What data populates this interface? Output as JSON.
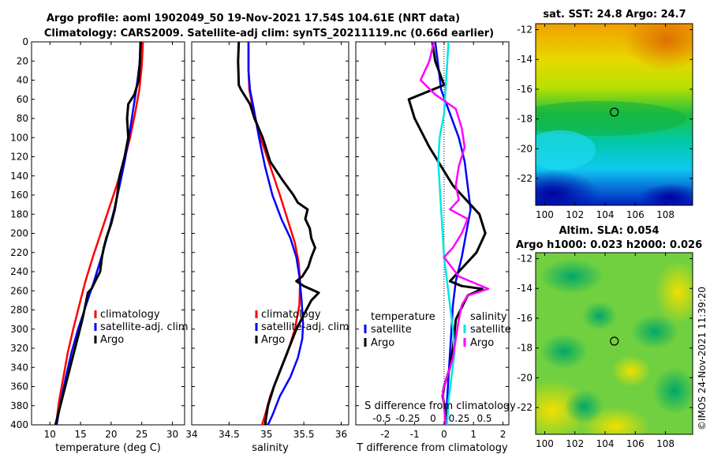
{
  "figure": {
    "title_line1": "Argo profile: aoml 1902049_50 19-Nov-2021 17.54S 104.61E (NRT data)",
    "title_line2": "Climatology: CARS2009. Satellite-adj clim: synTS_20211119.nc (0.66d earlier)",
    "credit": "©IMOS 24-Nov-2021 11:39:20"
  },
  "colors": {
    "climatology": "#ff0000",
    "satellite": "#0000ff",
    "argo": "#000000",
    "sat_salinity": "#00e5e5",
    "argo_salinity": "#ff00ff"
  },
  "chart_data": [
    {
      "type": "line",
      "title": "",
      "xlabel": "temperature (deg C)",
      "ylabel": "",
      "xlim": [
        7,
        32
      ],
      "ylim": [
        400,
        0
      ],
      "xticks": [
        "10",
        "15",
        "20",
        "25",
        "30"
      ],
      "xtick_values": [
        10,
        15,
        20,
        25,
        30
      ],
      "yticks": [
        "0",
        "20",
        "40",
        "60",
        "80",
        "100",
        "120",
        "140",
        "160",
        "180",
        "200",
        "220",
        "240",
        "260",
        "280",
        "300",
        "320",
        "340",
        "360",
        "380",
        "400"
      ],
      "legend": [
        "climatology",
        "satellite-adj. clim",
        "Argo"
      ],
      "series": [
        {
          "name": "climatology",
          "color": "#ff0000",
          "x": [
            25.2,
            25.0,
            24.6,
            23.9,
            23.1,
            22.1,
            20.9,
            19.6,
            18.3,
            17.0,
            15.8,
            14.8,
            13.8,
            12.9,
            12.2,
            11.5,
            11.0
          ],
          "y": [
            0,
            25,
            50,
            75,
            100,
            125,
            150,
            175,
            200,
            225,
            250,
            275,
            300,
            325,
            350,
            375,
            400
          ]
        },
        {
          "name": "satellite-adj. clim",
          "color": "#0000ff",
          "x": [
            24.9,
            24.6,
            24.1,
            23.5,
            22.9,
            22.2,
            21.4,
            20.5,
            19.5,
            18.4,
            17.2,
            15.9,
            14.6,
            13.5,
            12.6,
            11.8,
            11.1
          ],
          "y": [
            0,
            25,
            50,
            75,
            100,
            125,
            150,
            175,
            200,
            225,
            250,
            275,
            300,
            325,
            350,
            375,
            400
          ]
        },
        {
          "name": "Argo",
          "color": "#000000",
          "x": [
            24.8,
            24.7,
            24.5,
            23.8,
            22.8,
            22.6,
            22.8,
            22.2,
            21.4,
            21.0,
            20.6,
            20.0,
            19.2,
            18.8,
            18.5,
            18.2,
            17.4,
            16.8,
            16.2,
            15.8,
            15.3,
            14.7,
            14.1,
            13.5,
            12.9,
            12.3,
            11.7,
            11.3,
            10.9
          ],
          "y": [
            0,
            20,
            40,
            55,
            65,
            80,
            100,
            120,
            140,
            160,
            175,
            190,
            205,
            215,
            225,
            240,
            250,
            258,
            262,
            275,
            290,
            305,
            320,
            335,
            350,
            365,
            380,
            390,
            400
          ]
        }
      ]
    },
    {
      "type": "line",
      "title": "",
      "xlabel": "salinity",
      "ylabel": "",
      "xlim": [
        34,
        36.1
      ],
      "ylim": [
        400,
        0
      ],
      "xticks": [
        "34",
        "34.5",
        "35",
        "35.5",
        "36"
      ],
      "xtick_values": [
        34,
        34.5,
        35,
        35.5,
        36
      ],
      "legend": [
        "climatology",
        "satellite-adj. clim",
        "Argo"
      ],
      "series": [
        {
          "name": "climatology",
          "color": "#ff0000",
          "x": [
            34.76,
            34.76,
            34.77,
            34.82,
            34.92,
            35.05,
            35.18,
            35.3,
            35.38,
            35.43,
            35.45,
            35.44,
            35.38,
            35.28,
            35.15,
            35.05,
            34.98,
            34.94
          ],
          "y": [
            0,
            30,
            50,
            70,
            100,
            130,
            160,
            190,
            210,
            230,
            250,
            275,
            300,
            325,
            350,
            370,
            390,
            400
          ]
        },
        {
          "name": "satellite-adj. clim",
          "color": "#0000ff",
          "x": [
            34.76,
            34.76,
            34.78,
            34.83,
            34.9,
            34.98,
            35.08,
            35.2,
            35.32,
            35.4,
            35.44,
            35.47,
            35.49,
            35.48,
            35.42,
            35.32,
            35.18,
            35.08,
            35.02
          ],
          "y": [
            0,
            30,
            50,
            70,
            100,
            130,
            160,
            185,
            205,
            225,
            245,
            270,
            295,
            310,
            330,
            350,
            370,
            390,
            400
          ]
        },
        {
          "name": "Argo",
          "color": "#000000",
          "x": [
            34.63,
            34.62,
            34.63,
            34.66,
            34.78,
            34.84,
            34.95,
            35.05,
            35.22,
            35.36,
            35.42,
            35.55,
            35.52,
            35.58,
            35.6,
            35.65,
            35.6,
            35.56,
            35.48,
            35.4,
            35.5,
            35.7,
            35.6,
            35.5,
            35.4,
            35.3,
            35.2,
            35.1,
            35.02,
            34.98
          ],
          "y": [
            0,
            20,
            45,
            50,
            65,
            80,
            100,
            125,
            145,
            160,
            168,
            175,
            185,
            195,
            205,
            215,
            225,
            235,
            245,
            250,
            255,
            262,
            270,
            285,
            300,
            320,
            340,
            360,
            380,
            400
          ]
        }
      ]
    },
    {
      "type": "line",
      "title": "",
      "xlabel": "T difference from climatology",
      "xlabel_top": "S difference from climatology",
      "ylabel": "",
      "xlim": [
        -3,
        2.2
      ],
      "ylim": [
        400,
        0
      ],
      "xticks": [
        "-2",
        "-1",
        "0",
        "1",
        "2"
      ],
      "xtick_values": [
        -2,
        -1,
        0,
        1,
        2
      ],
      "xticks_top": [
        "-0.5",
        "-0.25",
        "0",
        "0.25",
        "0.5"
      ],
      "legend_temperature_title": "temperature",
      "legend_salinity_title": "salinity",
      "legend": [
        "satellite",
        "Argo",
        "satellite",
        "Argo"
      ],
      "series": [
        {
          "name": "satellite (temperature)",
          "color": "#0000ff",
          "x": [
            -0.3,
            -0.2,
            -0.1,
            0.2,
            0.5,
            0.7,
            0.8,
            0.9,
            0.75,
            0.6,
            0.4,
            0.3,
            0.25,
            0.2,
            0.15,
            0.1,
            0.08
          ],
          "y": [
            0,
            25,
            50,
            75,
            100,
            125,
            150,
            175,
            200,
            225,
            250,
            275,
            300,
            325,
            350,
            375,
            400
          ]
        },
        {
          "name": "Argo (temperature)",
          "color": "#000000",
          "x": [
            -0.4,
            -0.3,
            0.0,
            -1.2,
            -1.0,
            -0.5,
            0.3,
            1.2,
            1.4,
            1.1,
            0.5,
            0.2,
            0.6,
            1.3,
            0.8,
            0.4,
            0.3,
            0.2,
            0.0,
            -0.05,
            0.05,
            0.1
          ],
          "y": [
            0,
            20,
            45,
            60,
            80,
            110,
            150,
            180,
            200,
            220,
            240,
            250,
            255,
            258,
            265,
            290,
            320,
            340,
            360,
            370,
            385,
            400
          ]
        },
        {
          "name": "satellite (salinity)",
          "color": "#00e5e5",
          "x": [
            0.15,
            0.1,
            0.05,
            0.0,
            -0.15,
            -0.2,
            -0.15,
            -0.1,
            -0.05,
            0.0,
            0.1,
            0.2,
            0.3,
            0.35,
            0.25,
            0.15,
            0.1
          ],
          "y": [
            0,
            25,
            50,
            75,
            100,
            125,
            150,
            175,
            200,
            225,
            250,
            275,
            300,
            325,
            350,
            375,
            400
          ]
        },
        {
          "name": "Argo (salinity)",
          "color": "#ff00ff",
          "x": [
            -0.35,
            -0.5,
            -0.8,
            -0.3,
            0.4,
            0.6,
            0.7,
            0.5,
            0.4,
            0.5,
            0.2,
            0.8,
            0.6,
            0.3,
            0.0,
            0.5,
            1.5,
            0.8,
            0.6,
            0.5,
            0.4,
            0.3,
            0.1,
            -0.05,
            0.0,
            0.05
          ],
          "y": [
            0,
            20,
            40,
            55,
            70,
            90,
            110,
            130,
            150,
            165,
            175,
            185,
            200,
            215,
            225,
            245,
            258,
            265,
            275,
            290,
            310,
            330,
            350,
            365,
            380,
            400
          ]
        }
      ]
    }
  ],
  "maps": [
    {
      "title": "sat. SST: 24.8 Argo: 24.7",
      "title_line2": "",
      "x_ticks": [
        "100",
        "102",
        "104",
        "106",
        "108"
      ],
      "x_tick_values": [
        100,
        102,
        104,
        106,
        108
      ],
      "y_ticks": [
        "-12",
        "-14",
        "-16",
        "-18",
        "-20",
        "-22"
      ],
      "y_tick_values": [
        -12,
        -14,
        -16,
        -18,
        -20,
        -22
      ],
      "lon_range": [
        99.4,
        109.8
      ],
      "lat_range": [
        -23.8,
        -11.6
      ],
      "marker_lon": 104.61,
      "marker_lat": -17.54,
      "colormap": "jet-like SST field"
    },
    {
      "title": "Altim. SLA: 0.054",
      "title_line2": "Argo h1000: 0.023 h2000: 0.026",
      "x_ticks": [
        "100",
        "102",
        "104",
        "106",
        "108"
      ],
      "x_tick_values": [
        100,
        102,
        104,
        106,
        108
      ],
      "y_ticks": [
        "-12",
        "-14",
        "-16",
        "-18",
        "-20",
        "-22"
      ],
      "y_tick_values": [
        -12,
        -14,
        -16,
        -18,
        -20,
        -22
      ],
      "lon_range": [
        99.4,
        109.8
      ],
      "lat_range": [
        -23.8,
        -11.6
      ],
      "marker_lon": 104.61,
      "marker_lat": -17.54,
      "colormap": "jet-like SLA field"
    }
  ]
}
